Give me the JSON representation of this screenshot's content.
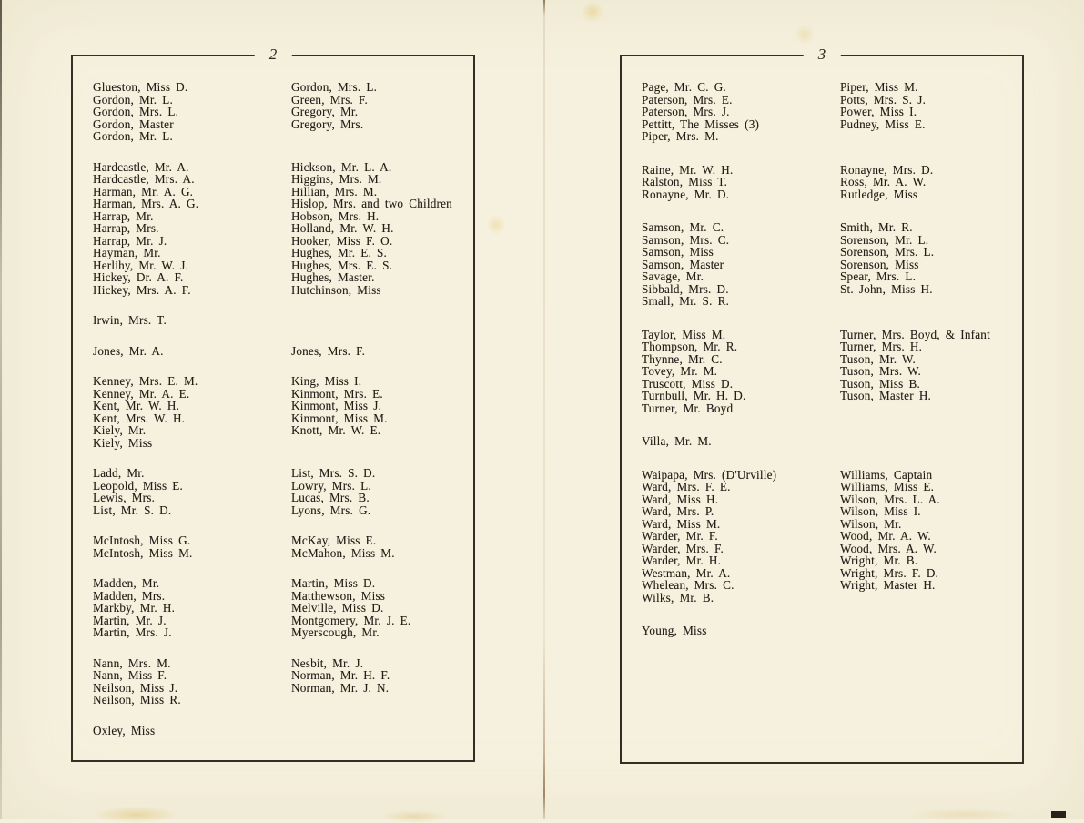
{
  "pages": [
    {
      "page_number": "2",
      "groups": [
        {
          "col1": [
            "Glueston, Miss D.",
            "Gordon, Mr. L.",
            "Gordon, Mrs. L.",
            "Gordon, Master",
            "Gordon, Mr. L."
          ],
          "col2": [
            "Gordon, Mrs. L.",
            "Green, Mrs. F.",
            "Gregory, Mr.",
            "Gregory, Mrs."
          ]
        },
        {
          "col1": [
            "Hardcastle, Mr. A.",
            "Hardcastle, Mrs. A.",
            "Harman, Mr. A. G.",
            "Harman, Mrs. A. G.",
            "Harrap, Mr.",
            "Harrap, Mrs.",
            "Harrap, Mr. J.",
            "Hayman, Mr.",
            "Herlihy, Mr. W. J.",
            "Hickey, Dr. A. F.",
            "Hickey, Mrs. A. F."
          ],
          "col2": [
            "Hickson, Mr. L. A.",
            "Higgins, Mrs. M.",
            "Hillian, Mrs. M.",
            "Hislop, Mrs. and two Children",
            "Hobson, Mrs. H.",
            "Holland, Mr. W. H.",
            "Hooker, Miss F. O.",
            "Hughes, Mr. E. S.",
            "Hughes, Mrs. E. S.",
            "Hughes, Master.",
            "Hutchinson, Miss"
          ]
        },
        {
          "col1": [
            "Irwin, Mrs. T."
          ],
          "col2": []
        },
        {
          "col1": [
            "Jones, Mr. A."
          ],
          "col2": [
            "Jones, Mrs. F."
          ]
        },
        {
          "col1": [
            "Kenney, Mrs. E. M.",
            "Kenney, Mr. A. E.",
            "Kent, Mr. W. H.",
            "Kent, Mrs. W. H.",
            "Kiely, Mr.",
            "Kiely, Miss"
          ],
          "col2": [
            "King, Miss I.",
            "Kinmont, Mrs. E.",
            "Kinmont, Miss J.",
            "Kinmont, Miss M.",
            "Knott, Mr. W. E."
          ]
        },
        {
          "col1": [
            "Ladd, Mr.",
            "Leopold, Miss E.",
            "Lewis, Mrs.",
            "List, Mr. S. D."
          ],
          "col2": [
            "List, Mrs. S. D.",
            "Lowry, Mrs. L.",
            "Lucas, Mrs. B.",
            "Lyons, Mrs. G."
          ]
        },
        {
          "col1": [
            "McIntosh, Miss G.",
            "McIntosh, Miss M."
          ],
          "col2": [
            "McKay, Miss E.",
            "McMahon, Miss M."
          ]
        },
        {
          "col1": [
            "Madden, Mr.",
            "Madden, Mrs.",
            "Markby, Mr. H.",
            "Martin, Mr. J.",
            "Martin, Mrs. J."
          ],
          "col2": [
            "Martin, Miss D.",
            "Matthewson, Miss",
            "Melville, Miss D.",
            "Montgomery, Mr. J. E.",
            "Myerscough, Mr."
          ]
        },
        {
          "col1": [
            "Nann, Mrs. M.",
            "Nann, Miss F.",
            "Neilson, Miss J.",
            "Neilson, Miss R."
          ],
          "col2": [
            "Nesbit, Mr. J.",
            "Norman, Mr. H. F.",
            "Norman, Mr. J. N."
          ]
        },
        {
          "col1": [
            "Oxley, Miss"
          ],
          "col2": []
        }
      ]
    },
    {
      "page_number": "3",
      "groups": [
        {
          "col1": [
            "Page, Mr. C. G.",
            "Paterson, Mrs. E.",
            "Paterson, Mrs. J.",
            "Pettitt, The Misses (3)",
            "Piper, Mrs. M."
          ],
          "col2": [
            "Piper, Miss M.",
            "Potts, Mrs. S. J.",
            "Power, Miss I.",
            "Pudney, Miss E."
          ]
        },
        {
          "col1": [
            "Raine, Mr. W. H.",
            "Ralston, Miss T.",
            "Ronayne, Mr. D."
          ],
          "col2": [
            "Ronayne, Mrs. D.",
            "Ross, Mr. A. W.",
            "Rutledge, Miss"
          ]
        },
        {
          "col1": [
            "Samson, Mr. C.",
            "Samson, Mrs. C.",
            "Samson, Miss",
            "Samson, Master",
            "Savage, Mr.",
            "Sibbald, Mrs. D.",
            "Small, Mr. S. R."
          ],
          "col2": [
            "Smith, Mr. R.",
            "Sorenson, Mr. L.",
            "Sorenson, Mrs. L.",
            "Sorenson, Miss",
            "Spear, Mrs. L.",
            "St. John, Miss H."
          ]
        },
        {
          "col1": [
            "Taylor, Miss M.",
            "Thompson, Mr. R.",
            "Thynne, Mr. C.",
            "Tovey, Mr. M.",
            "Truscott, Miss D.",
            "Turnbull, Mr. H. D.",
            "Turner, Mr. Boyd"
          ],
          "col2": [
            "Turner, Mrs. Boyd, & Infant",
            "Turner, Mrs. H.",
            "Tuson, Mr. W.",
            "Tuson, Mrs. W.",
            "Tuson, Miss B.",
            "Tuson, Master H."
          ]
        },
        {
          "col1": [
            "Villa, Mr. M."
          ],
          "col2": []
        },
        {
          "col1": [
            "Waipapa, Mrs. (D'Urville)",
            "Ward, Mrs. F. E.",
            "Ward, Miss H.",
            "Ward, Mrs. P.",
            "Ward, Miss M.",
            "Warder, Mr. F.",
            "Warder, Mrs. F.",
            "Warder, Mr. H.",
            "Westman, Mr. A.",
            "Whelean, Mrs. C.",
            "Wilks, Mr. B."
          ],
          "col2": [
            "Williams, Captain",
            "Williams, Miss E.",
            "Wilson, Mrs. L. A.",
            "Wilson, Miss I.",
            "Wilson, Mr.",
            "Wood, Mr. A. W.",
            "Wood, Mrs. A. W.",
            "Wright, Mr. B.",
            "Wright, Mrs. F. D.",
            "Wright, Master H."
          ]
        },
        {
          "col1": [
            "Young, Miss"
          ],
          "col2": []
        }
      ]
    }
  ]
}
